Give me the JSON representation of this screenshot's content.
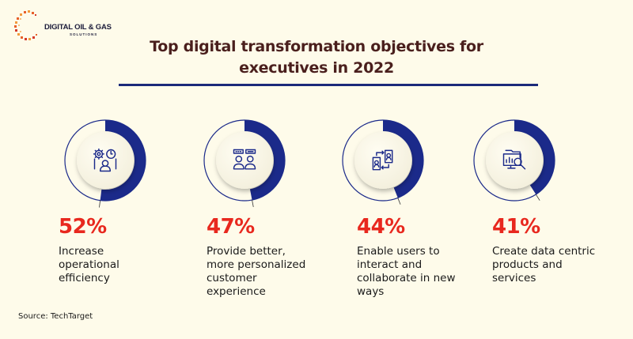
{
  "logo": {
    "name": "DIGITAL OIL & GAS",
    "subtitle": "SOLUTIONS"
  },
  "header": {
    "title_line1": "Top digital transformation objectives for",
    "title_line2": "executives in 2022"
  },
  "colors": {
    "background": "#fefbea",
    "ring": "#1b2a8a",
    "percent": "#e8281e",
    "title": "#4a1f1d",
    "rule": "#1b2a7a"
  },
  "chart_data": {
    "type": "pie",
    "title": "Top digital transformation objectives for executives in 2022",
    "unit": "%",
    "items": [
      {
        "value": 52,
        "label": "52%",
        "description": "Increase operational efficiency",
        "lines": [
          "Increase",
          "operational",
          "efficiency"
        ],
        "icon": "gears-clock-worker-icon"
      },
      {
        "value": 47,
        "label": "47%",
        "description": "Provide better, more personalized customer experience",
        "lines": [
          "Provide better,",
          "more personalized",
          "customer",
          "experience"
        ],
        "icon": "customer-rating-icon"
      },
      {
        "value": 44,
        "label": "44%",
        "description": "Enable users to interact and collaborate in new ways",
        "lines": [
          "Enable users to",
          "interact and",
          "collaborate in new",
          "ways"
        ],
        "icon": "mobile-users-exchange-icon"
      },
      {
        "value": 41,
        "label": "41%",
        "description": "Create data centric products and services",
        "lines": [
          "Create data centric",
          "products and",
          "services"
        ],
        "icon": "data-analytics-monitor-icon"
      }
    ]
  },
  "footer": {
    "source": "Source: TechTarget"
  }
}
